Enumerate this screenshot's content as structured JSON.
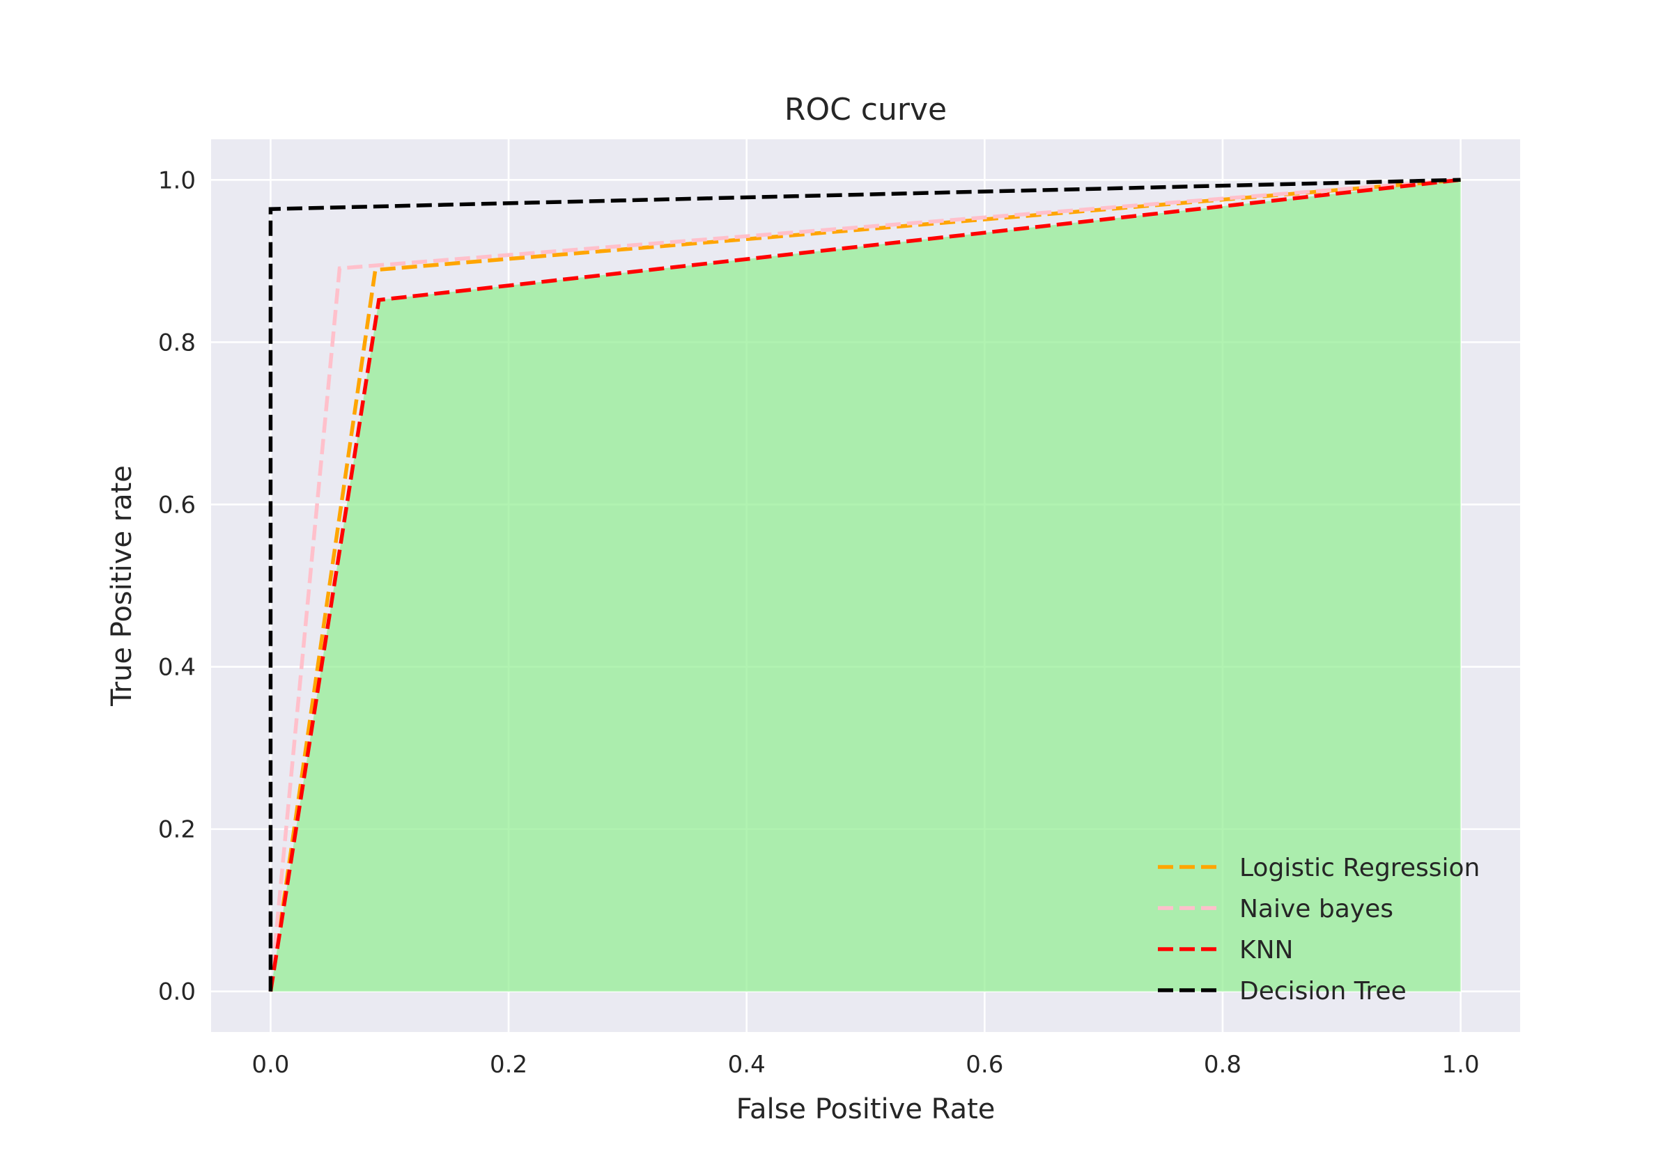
{
  "chart_data": {
    "type": "line",
    "title": "ROC curve",
    "xlabel": "False Positive Rate",
    "ylabel": "True Positive rate",
    "xlim": [
      -0.05,
      1.05
    ],
    "ylim": [
      -0.05,
      1.05
    ],
    "xticks": [
      0.0,
      0.2,
      0.4,
      0.6,
      0.8,
      1.0
    ],
    "yticks": [
      0.0,
      0.2,
      0.4,
      0.6,
      0.8,
      1.0
    ],
    "xtick_labels": [
      "0.0",
      "0.2",
      "0.4",
      "0.6",
      "0.8",
      "1.0"
    ],
    "ytick_labels": [
      "0.0",
      "0.2",
      "0.4",
      "0.6",
      "0.8",
      "1.0"
    ],
    "grid": true,
    "legend_position": "lower-right",
    "background_color": "#eaeaf2",
    "fill": {
      "under_series": "KNN",
      "color": "#90ee90",
      "opacity": 0.7
    },
    "series": [
      {
        "name": "Logistic Regression",
        "color": "#ffa500",
        "style": "dashed",
        "x": [
          0.0,
          0.088,
          1.0
        ],
        "y": [
          0.0,
          0.889,
          1.0
        ]
      },
      {
        "name": "Naive bayes",
        "color": "#ffc0cb",
        "style": "dashed",
        "x": [
          0.0,
          0.058,
          1.0
        ],
        "y": [
          0.0,
          0.891,
          1.0
        ]
      },
      {
        "name": "KNN",
        "color": "#ff0000",
        "style": "dashed",
        "x": [
          0.0,
          0.091,
          1.0
        ],
        "y": [
          0.0,
          0.852,
          1.0
        ]
      },
      {
        "name": "Decision Tree",
        "color": "#000000",
        "style": "dashed",
        "x": [
          0.0,
          0.0,
          1.0
        ],
        "y": [
          0.0,
          0.964,
          1.0
        ]
      }
    ]
  }
}
